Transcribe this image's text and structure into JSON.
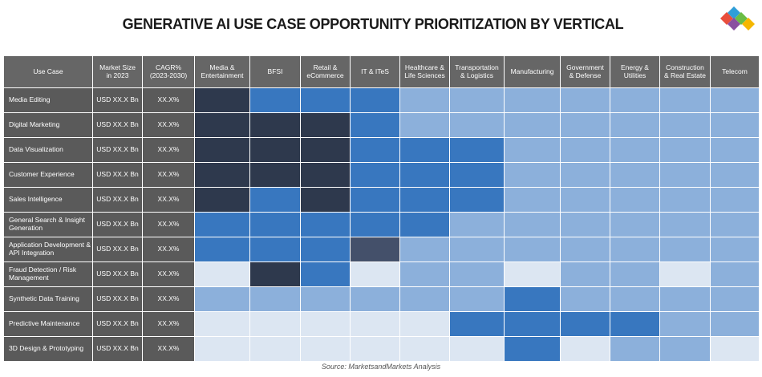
{
  "title": "GENERATIVE AI USE CASE OPPORTUNITY PRIORITIZATION BY VERTICAL",
  "source": "Source: MarketsandMarkets Analysis",
  "columns": [
    "Use Case",
    "Market Size\nin 2023",
    "CAGR%\n(2023-2030)",
    "Media &\nEntertainment",
    "BFSI",
    "Retail &\neCommerce",
    "IT & ITeS",
    "Healthcare &\nLife Sciences",
    "Transportation\n& Logistics",
    "Manufacturing",
    "Government\n& Defense",
    "Energy &\nUtilities",
    "Construction\n& Real Estate",
    "Telecom"
  ],
  "rows": [
    {
      "use_case": "Media Editing",
      "market_size": "USD XX.X Bn",
      "cagr": "XX.X%",
      "colors": [
        "#2e394d",
        "#3877bf",
        "#3877bf",
        "#3877bf",
        "#8cb0db",
        "#8cb0db",
        "#8cb0db",
        "#8cb0db",
        "#8cb0db",
        "#8cb0db",
        "#8cb0db"
      ]
    },
    {
      "use_case": "Digital Marketing",
      "market_size": "USD XX.X Bn",
      "cagr": "XX.X%",
      "colors": [
        "#2e394d",
        "#2e394d",
        "#2e394d",
        "#3877bf",
        "#8cb0db",
        "#8cb0db",
        "#8cb0db",
        "#8cb0db",
        "#8cb0db",
        "#8cb0db",
        "#8cb0db"
      ]
    },
    {
      "use_case": "Data Visualization",
      "market_size": "USD XX.X Bn",
      "cagr": "XX.X%",
      "colors": [
        "#2e394d",
        "#2e394d",
        "#2e394d",
        "#3877bf",
        "#3877bf",
        "#3877bf",
        "#8cb0db",
        "#8cb0db",
        "#8cb0db",
        "#8cb0db",
        "#8cb0db"
      ]
    },
    {
      "use_case": "Customer Experience",
      "market_size": "USD XX.X Bn",
      "cagr": "XX.X%",
      "colors": [
        "#2e394d",
        "#2e394d",
        "#2e394d",
        "#3877bf",
        "#3877bf",
        "#3877bf",
        "#8cb0db",
        "#8cb0db",
        "#8cb0db",
        "#8cb0db",
        "#8cb0db"
      ]
    },
    {
      "use_case": "Sales Intelligence",
      "market_size": "USD XX.X Bn",
      "cagr": "XX.X%",
      "colors": [
        "#2e394d",
        "#3877bf",
        "#2e394d",
        "#3877bf",
        "#3877bf",
        "#3877bf",
        "#8cb0db",
        "#8cb0db",
        "#8cb0db",
        "#8cb0db",
        "#8cb0db"
      ]
    },
    {
      "use_case": "General Search & Insight\nGeneration",
      "market_size": "USD XX.X Bn",
      "cagr": "XX.X%",
      "colors": [
        "#3877bf",
        "#3877bf",
        "#3877bf",
        "#3877bf",
        "#3877bf",
        "#8cb0db",
        "#8cb0db",
        "#8cb0db",
        "#8cb0db",
        "#8cb0db",
        "#8cb0db"
      ]
    },
    {
      "use_case": "Application Development &\nAPI Integration",
      "market_size": "USD XX.X Bn",
      "cagr": "XX.X%",
      "colors": [
        "#3877bf",
        "#3877bf",
        "#3877bf",
        "#44506a",
        "#8cb0db",
        "#8cb0db",
        "#8cb0db",
        "#8cb0db",
        "#8cb0db",
        "#8cb0db",
        "#8cb0db"
      ]
    },
    {
      "use_case": "Fraud Detection / Risk\nManagement",
      "market_size": "USD XX.X Bn",
      "cagr": "XX.X%",
      "colors": [
        "#dce6f2",
        "#2e394d",
        "#3877bf",
        "#dce6f2",
        "#8cb0db",
        "#8cb0db",
        "#dce6f2",
        "#8cb0db",
        "#8cb0db",
        "#dce6f2",
        "#8cb0db"
      ]
    },
    {
      "use_case": "Synthetic Data Training",
      "market_size": "USD XX.X Bn",
      "cagr": "XX.X%",
      "colors": [
        "#8cb0db",
        "#8cb0db",
        "#8cb0db",
        "#8cb0db",
        "#8cb0db",
        "#8cb0db",
        "#3877bf",
        "#8cb0db",
        "#8cb0db",
        "#8cb0db",
        "#8cb0db"
      ]
    },
    {
      "use_case": "Predictive Maintenance",
      "market_size": "USD XX.X Bn",
      "cagr": "XX.X%",
      "colors": [
        "#dce6f2",
        "#dce6f2",
        "#dce6f2",
        "#dce6f2",
        "#dce6f2",
        "#3877bf",
        "#3877bf",
        "#3877bf",
        "#3877bf",
        "#8cb0db",
        "#8cb0db"
      ]
    },
    {
      "use_case": "3D Design & Prototyping",
      "market_size": "USD XX.X Bn",
      "cagr": "XX.X%",
      "colors": [
        "#dce6f2",
        "#dce6f2",
        "#dce6f2",
        "#dce6f2",
        "#dce6f2",
        "#dce6f2",
        "#3877bf",
        "#dce6f2",
        "#8cb0db",
        "#8cb0db",
        "#dce6f2"
      ]
    }
  ]
}
